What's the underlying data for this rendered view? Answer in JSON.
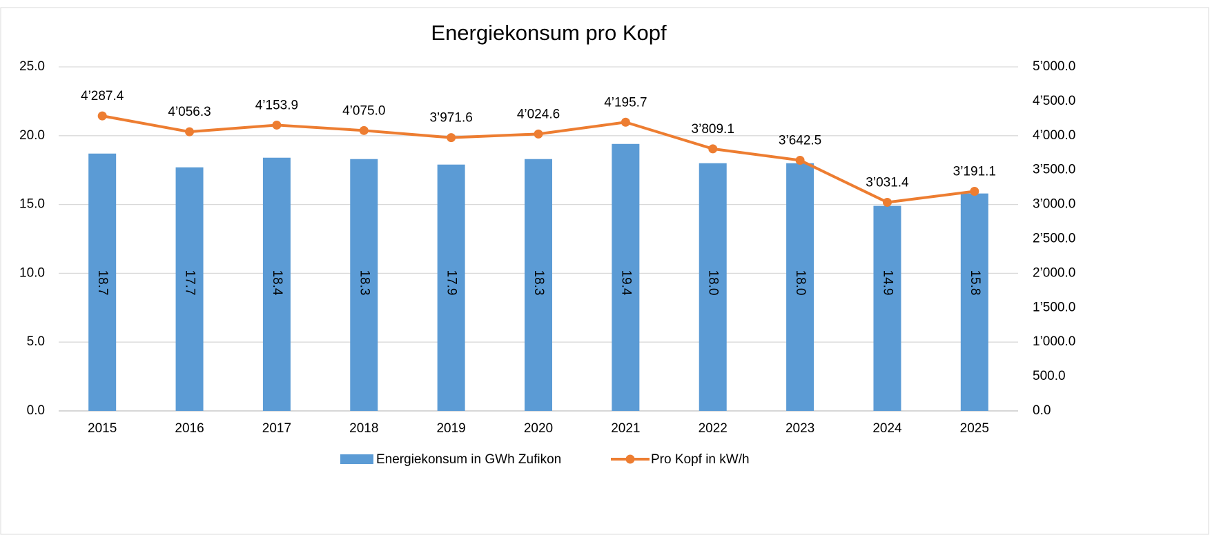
{
  "chart_data": {
    "type": "bar",
    "title": "Energiekonsum pro Kopf",
    "categories": [
      "2015",
      "2016",
      "2017",
      "2018",
      "2019",
      "2020",
      "2021",
      "2022",
      "2023",
      "2024",
      "2025"
    ],
    "series": [
      {
        "name": "Energiekonsum in GWh Zufikon",
        "type": "bar",
        "color": "#5b9bd5",
        "axis": "y",
        "values": [
          18.7,
          17.7,
          18.4,
          18.3,
          17.9,
          18.3,
          19.4,
          18.0,
          18.0,
          14.9,
          15.8
        ],
        "value_labels": [
          "18.7",
          "17.7",
          "18.4",
          "18.3",
          "17.9",
          "18.3",
          "19.4",
          "18.0",
          "18.0",
          "14.9",
          "15.8"
        ]
      },
      {
        "name": "Pro Kopf in kW/h",
        "type": "line",
        "color": "#ed7d31",
        "axis": "y2",
        "values": [
          4287.4,
          4056.3,
          4153.9,
          4075.0,
          3971.6,
          4024.6,
          4195.7,
          3809.1,
          3642.5,
          3031.4,
          3191.1
        ],
        "value_labels": [
          "4’287.4",
          "4’056.3",
          "4’153.9",
          "4’075.0",
          "3’971.6",
          "4’024.6",
          "4’195.7",
          "3’809.1",
          "3’642.5",
          "3’031.4",
          "3’191.1"
        ]
      }
    ],
    "ylim": [
      0,
      25
    ],
    "yticks": [
      {
        "value": 0,
        "label": "0.0"
      },
      {
        "value": 5,
        "label": "5.0"
      },
      {
        "value": 10,
        "label": "10.0"
      },
      {
        "value": 15,
        "label": "15.0"
      },
      {
        "value": 20,
        "label": "20.0"
      },
      {
        "value": 25,
        "label": "25.0"
      }
    ],
    "y2lim": [
      0,
      5000
    ],
    "y2ticks": [
      {
        "value": 0,
        "label": "0.0"
      },
      {
        "value": 500,
        "label": "500.0"
      },
      {
        "value": 1000,
        "label": "1’000.0"
      },
      {
        "value": 1500,
        "label": "1’500.0"
      },
      {
        "value": 2000,
        "label": "2’000.0"
      },
      {
        "value": 2500,
        "label": "2’500.0"
      },
      {
        "value": 3000,
        "label": "3’000.0"
      },
      {
        "value": 3500,
        "label": "3’500.0"
      },
      {
        "value": 4000,
        "label": "4’000.0"
      },
      {
        "value": 4500,
        "label": "4’500.0"
      },
      {
        "value": 5000,
        "label": "5’000.0"
      }
    ],
    "grid": true,
    "legend": "bottom"
  }
}
